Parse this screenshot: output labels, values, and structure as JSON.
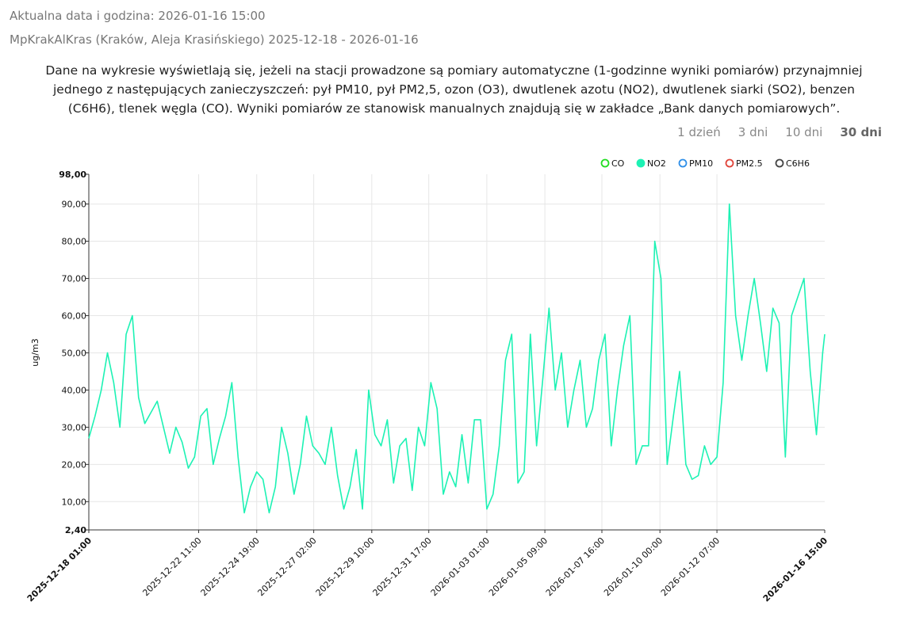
{
  "header": {
    "current": "Aktualna data i godzina: 2026-01-16 15:00",
    "station": "MpKrakAlKras (Kraków, Aleja Krasińskiego) 2025-12-18 - 2026-01-16"
  },
  "notice": "Dane na wykresie wyświetlają się, jeżeli na stacji prowadzone są pomiary automatyczne (1-godzinne wyniki pomiarów) przynajmniej jednego z następujących zanieczyszczeń: pył PM10, pył PM2,5, ozon (O3), dwutlenek azotu (NO2), dwutlenek siarki (SO2), benzen (C6H6), tlenek węgla (CO). Wyniki pomiarów ze stanowisk manualnych znajdują się w zakładce „Bank danych pomiarowych”.",
  "range_options": [
    "1 dzień",
    "3 dni",
    "10 dni",
    "30 dni"
  ],
  "range_active": 3,
  "chart_data": {
    "type": "line",
    "ylabel": "ug/m3",
    "legend": [
      {
        "name": "CO",
        "color": "#22dd22",
        "visible": false
      },
      {
        "name": "NO2",
        "color": "#1df2b4",
        "visible": true
      },
      {
        "name": "PM10",
        "color": "#2f8fe8",
        "visible": false
      },
      {
        "name": "PM2.5",
        "color": "#e0443a",
        "visible": false
      },
      {
        "name": "C6H6",
        "color": "#444444",
        "visible": false
      }
    ],
    "x": [
      "2025-12-18 01:00",
      "2025-12-18 07:00",
      "2025-12-18 13:00",
      "2025-12-18 19:00",
      "2025-12-19 01:00",
      "2025-12-19 07:00",
      "2025-12-19 13:00",
      "2025-12-19 19:00",
      "2025-12-20 01:00",
      "2025-12-20 07:00",
      "2025-12-20 13:00",
      "2025-12-20 19:00",
      "2025-12-21 01:00",
      "2025-12-21 07:00",
      "2025-12-21 13:00",
      "2025-12-21 19:00",
      "2025-12-22 01:00",
      "2025-12-22 07:00",
      "2025-12-22 13:00",
      "2025-12-22 19:00",
      "2025-12-23 01:00",
      "2025-12-23 07:00",
      "2025-12-23 13:00",
      "2025-12-23 19:00",
      "2025-12-24 01:00",
      "2025-12-24 07:00",
      "2025-12-24 13:00",
      "2025-12-24 19:00",
      "2025-12-25 01:00",
      "2025-12-25 07:00",
      "2025-12-25 13:00",
      "2025-12-25 19:00",
      "2025-12-26 01:00",
      "2025-12-26 07:00",
      "2025-12-26 13:00",
      "2025-12-26 19:00",
      "2025-12-27 01:00",
      "2025-12-27 07:00",
      "2025-12-27 13:00",
      "2025-12-27 19:00",
      "2025-12-28 01:00",
      "2025-12-28 07:00",
      "2025-12-28 13:00",
      "2025-12-28 19:00",
      "2025-12-29 01:00",
      "2025-12-29 07:00",
      "2025-12-29 13:00",
      "2025-12-29 19:00",
      "2025-12-30 01:00",
      "2025-12-30 07:00",
      "2025-12-30 13:00",
      "2025-12-30 19:00",
      "2025-12-31 01:00",
      "2025-12-31 07:00",
      "2025-12-31 13:00",
      "2025-12-31 19:00",
      "2026-01-01 01:00",
      "2026-01-01 07:00",
      "2026-01-01 13:00",
      "2026-01-01 19:00",
      "2026-01-02 01:00",
      "2026-01-02 07:00",
      "2026-01-02 13:00",
      "2026-01-02 19:00",
      "2026-01-03 01:00",
      "2026-01-03 07:00",
      "2026-01-03 13:00",
      "2026-01-03 19:00",
      "2026-01-04 01:00",
      "2026-01-04 07:00",
      "2026-01-04 13:00",
      "2026-01-04 19:00",
      "2026-01-05 01:00",
      "2026-01-05 07:00",
      "2026-01-05 13:00",
      "2026-01-05 19:00",
      "2026-01-06 01:00",
      "2026-01-06 07:00",
      "2026-01-06 13:00",
      "2026-01-06 19:00",
      "2026-01-07 01:00",
      "2026-01-07 07:00",
      "2026-01-07 13:00",
      "2026-01-07 19:00",
      "2026-01-08 01:00",
      "2026-01-08 07:00",
      "2026-01-08 13:00",
      "2026-01-08 19:00",
      "2026-01-09 01:00",
      "2026-01-09 07:00",
      "2026-01-09 13:00",
      "2026-01-09 19:00",
      "2026-01-10 01:00",
      "2026-01-10 07:00",
      "2026-01-10 13:00",
      "2026-01-10 19:00",
      "2026-01-11 01:00",
      "2026-01-11 07:00",
      "2026-01-11 13:00",
      "2026-01-11 19:00",
      "2026-01-12 01:00",
      "2026-01-12 07:00",
      "2026-01-12 13:00",
      "2026-01-12 19:00",
      "2026-01-13 01:00",
      "2026-01-13 07:00",
      "2026-01-13 13:00",
      "2026-01-13 19:00",
      "2026-01-14 01:00",
      "2026-01-14 07:00",
      "2026-01-14 13:00",
      "2026-01-14 19:00",
      "2026-01-15 01:00",
      "2026-01-15 07:00",
      "2026-01-15 13:00",
      "2026-01-15 19:00",
      "2026-01-16 01:00",
      "2026-01-16 07:00",
      "2026-01-16 13:00",
      "2026-01-16 15:00"
    ],
    "series": [
      {
        "name": "NO2",
        "color": "#1df2b4",
        "values": [
          27,
          33,
          40,
          50,
          42,
          30,
          55,
          60,
          38,
          31,
          34,
          37,
          30,
          23,
          30,
          26,
          19,
          22,
          33,
          35,
          20,
          27,
          33,
          42,
          22,
          7,
          14,
          18,
          16,
          7,
          14,
          30,
          23,
          12,
          20,
          33,
          25,
          23,
          20,
          30,
          17,
          8,
          14,
          24,
          8,
          40,
          28,
          25,
          32,
          15,
          25,
          27,
          13,
          30,
          25,
          42,
          35,
          12,
          18,
          14,
          28,
          15,
          32,
          32,
          8,
          12,
          25,
          48,
          55,
          15,
          18,
          55,
          25,
          43,
          62,
          40,
          50,
          30,
          40,
          48,
          30,
          35,
          48,
          55,
          25,
          40,
          52,
          60,
          20,
          25,
          25,
          80,
          70,
          20,
          33,
          45,
          20,
          16,
          17,
          25,
          20,
          22,
          42,
          90,
          60,
          48,
          60,
          70,
          58,
          45,
          62,
          58,
          22,
          60,
          65,
          70,
          45,
          28,
          50,
          55
        ]
      }
    ],
    "xlim": [
      "2025-12-18 01:00",
      "2026-01-16 15:00"
    ],
    "xticks": [
      "2025-12-18 01:00",
      "2025-12-22 11:00",
      "2025-12-24 19:00",
      "2025-12-27 02:00",
      "2025-12-29 10:00",
      "2025-12-31 17:00",
      "2026-01-03 01:00",
      "2026-01-05 09:00",
      "2026-01-07 16:00",
      "2026-01-10 00:00",
      "2026-01-12 07:00",
      "2026-01-16 15:00"
    ],
    "ylim": [
      2.4,
      98
    ],
    "yticks": [
      {
        "value": 2.4,
        "label": "2,40"
      },
      {
        "value": 10,
        "label": "10,00"
      },
      {
        "value": 20,
        "label": "20,00"
      },
      {
        "value": 30,
        "label": "30,00"
      },
      {
        "value": 40,
        "label": "40,00"
      },
      {
        "value": 50,
        "label": "50,00"
      },
      {
        "value": 60,
        "label": "60,00"
      },
      {
        "value": 70,
        "label": "70,00"
      },
      {
        "value": 80,
        "label": "80,00"
      },
      {
        "value": 90,
        "label": "90,00"
      },
      {
        "value": 98,
        "label": "98,00"
      }
    ],
    "grid": true
  }
}
